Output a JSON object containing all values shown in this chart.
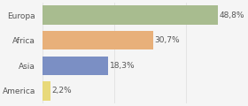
{
  "categories": [
    "Europa",
    "Africa",
    "Asia",
    "America"
  ],
  "values": [
    48.8,
    30.7,
    18.3,
    2.2
  ],
  "labels": [
    "48,8%",
    "30,7%",
    "18,3%",
    "2,2%"
  ],
  "bar_colors": [
    "#a8bc8f",
    "#e8b07a",
    "#7b8fc4",
    "#e8d97a"
  ],
  "background_color": "#f5f5f5",
  "xlim": [
    0,
    55
  ],
  "bar_height": 0.75,
  "label_fontsize": 6.5,
  "ytick_fontsize": 6.5,
  "figsize": [
    2.8,
    1.2
  ],
  "dpi": 100
}
